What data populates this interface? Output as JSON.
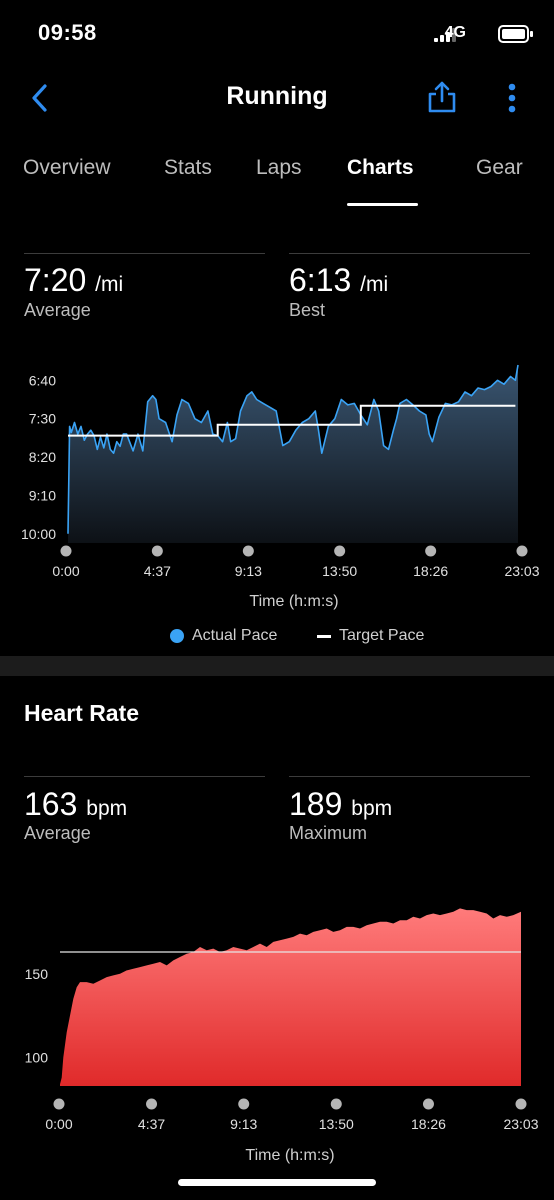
{
  "status_bar": {
    "time": "09:58",
    "network": "4G"
  },
  "nav": {
    "title": "Running"
  },
  "tabs": [
    {
      "label": "Overview",
      "active": false
    },
    {
      "label": "Stats",
      "active": false
    },
    {
      "label": "Laps",
      "active": false
    },
    {
      "label": "Charts",
      "active": true
    },
    {
      "label": "Gear",
      "active": false
    }
  ],
  "pace": {
    "average_value": "7:20",
    "average_unit": "/mi",
    "average_label": "Average",
    "best_value": "6:13",
    "best_unit": "/mi",
    "best_label": "Best",
    "legend_actual": "Actual Pace",
    "legend_target": "Target Pace",
    "xlabel": "Time (h:m:s)"
  },
  "heart_rate": {
    "title": "Heart Rate",
    "average_value": "163",
    "average_unit": "bpm",
    "average_label": "Average",
    "max_value": "189",
    "max_unit": "bpm",
    "max_label": "Maximum",
    "xlabel": "Time (h:m:s)"
  },
  "chart_data": [
    {
      "type": "area",
      "y_tick_labels": [
        "6:40",
        "7:30",
        "8:20",
        "9:10",
        "10:00"
      ],
      "y_tick_seconds": [
        400,
        450,
        500,
        550,
        600
      ],
      "x_tick_labels": [
        "0:00",
        "4:37",
        "9:13",
        "13:50",
        "18:26",
        "23:03"
      ],
      "x_tick_seconds": [
        0,
        277,
        553,
        830,
        1106,
        1383
      ],
      "xlim": [
        0,
        1383
      ],
      "ylim": [
        612,
        380
      ],
      "series": [
        {
          "name": "Actual Pace",
          "color": "#3aa3f5",
          "x": [
            0,
            5,
            10,
            20,
            30,
            40,
            50,
            60,
            70,
            80,
            90,
            100,
            110,
            120,
            130,
            140,
            150,
            160,
            170,
            180,
            200,
            215,
            230,
            245,
            260,
            270,
            280,
            300,
            320,
            335,
            350,
            370,
            390,
            410,
            430,
            445,
            460,
            475,
            490,
            500,
            515,
            530,
            550,
            565,
            580,
            600,
            620,
            640,
            660,
            680,
            700,
            720,
            740,
            760,
            770,
            780,
            800,
            820,
            840,
            860,
            880,
            900,
            920,
            940,
            955,
            970,
            985,
            1000,
            1010,
            1020,
            1040,
            1060,
            1080,
            1100,
            1110,
            1120,
            1140,
            1160,
            1180,
            1200,
            1220,
            1240,
            1260,
            1280,
            1300,
            1320,
            1340,
            1360,
            1375,
            1383
          ],
          "y": [
            600,
            460,
            468,
            455,
            470,
            460,
            478,
            470,
            465,
            472,
            490,
            474,
            488,
            470,
            490,
            495,
            480,
            486,
            470,
            470,
            492,
            470,
            492,
            428,
            420,
            425,
            450,
            455,
            480,
            445,
            425,
            430,
            450,
            455,
            440,
            470,
            472,
            480,
            455,
            480,
            476,
            440,
            420,
            415,
            425,
            430,
            435,
            440,
            485,
            480,
            465,
            455,
            450,
            440,
            465,
            495,
            460,
            450,
            425,
            432,
            430,
            445,
            458,
            425,
            440,
            485,
            490,
            465,
            450,
            430,
            425,
            432,
            440,
            445,
            470,
            480,
            448,
            430,
            432,
            428,
            415,
            420,
            410,
            412,
            408,
            400,
            405,
            395,
            400,
            380
          ]
        },
        {
          "name": "Target Pace",
          "color": "#ffffff",
          "x": [
            0,
            460,
            460,
            900,
            900,
            1375
          ],
          "y": [
            472,
            472,
            458,
            458,
            433,
            433
          ]
        }
      ]
    },
    {
      "type": "area",
      "y_tick_labels": [
        "150",
        "100"
      ],
      "y_tick_values": [
        150,
        100
      ],
      "x_tick_labels": [
        "0:00",
        "4:37",
        "9:13",
        "13:50",
        "18:26",
        "23:03"
      ],
      "x_tick_seconds": [
        0,
        277,
        553,
        830,
        1106,
        1383
      ],
      "xlim": [
        0,
        1383
      ],
      "ylim": [
        83,
        200
      ],
      "reference_value": 163,
      "series": [
        {
          "name": "Heart Rate",
          "color": "#ff4a4a",
          "x": [
            0,
            5,
            10,
            20,
            30,
            40,
            50,
            60,
            80,
            100,
            120,
            140,
            160,
            180,
            200,
            220,
            240,
            260,
            280,
            300,
            320,
            340,
            360,
            380,
            400,
            420,
            440,
            460,
            480,
            500,
            520,
            540,
            560,
            580,
            600,
            620,
            640,
            660,
            680,
            700,
            720,
            740,
            760,
            780,
            800,
            820,
            840,
            860,
            880,
            900,
            920,
            940,
            960,
            980,
            1000,
            1020,
            1040,
            1060,
            1080,
            1100,
            1120,
            1140,
            1160,
            1180,
            1200,
            1220,
            1240,
            1260,
            1280,
            1300,
            1320,
            1340,
            1360,
            1383
          ],
          "y": [
            84,
            88,
            100,
            115,
            125,
            135,
            142,
            145,
            145,
            144,
            146,
            148,
            149,
            150,
            152,
            153,
            154,
            155,
            156,
            157,
            155,
            158,
            160,
            162,
            163,
            166,
            164,
            165,
            163,
            164,
            166,
            165,
            164,
            166,
            168,
            166,
            169,
            170,
            171,
            172,
            174,
            173,
            175,
            176,
            177,
            175,
            176,
            178,
            178,
            177,
            179,
            180,
            181,
            181,
            180,
            182,
            182,
            184,
            183,
            185,
            186,
            185,
            186,
            187,
            189,
            188,
            188,
            187,
            186,
            183,
            185,
            184,
            185,
            187
          ]
        }
      ]
    }
  ]
}
